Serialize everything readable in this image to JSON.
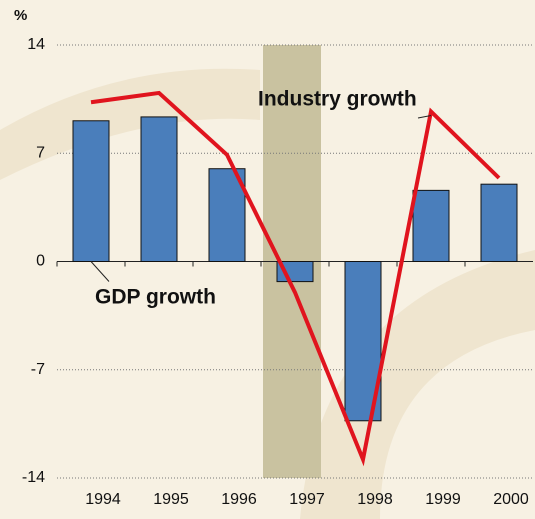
{
  "chart_data": {
    "type": "bar",
    "y_unit": "%",
    "categories": [
      "1994",
      "1995",
      "1996",
      "1997",
      "1998",
      "1999",
      "2000"
    ],
    "series": [
      {
        "name": "GDP growth",
        "type": "bar",
        "color": "#4a7ebb",
        "values": [
          9.1,
          9.35,
          6.0,
          -1.3,
          -10.3,
          4.6,
          5.0
        ]
      },
      {
        "name": "Industry growth",
        "type": "line",
        "color": "#e0141e",
        "values": [
          10.3,
          10.9,
          6.9,
          -2.0,
          -12.8,
          9.7,
          5.4
        ]
      }
    ],
    "highlight": "1997",
    "ylim": [
      -14,
      14
    ],
    "yticks": [
      -14,
      -7,
      0,
      7,
      14
    ],
    "grid": true
  }
}
